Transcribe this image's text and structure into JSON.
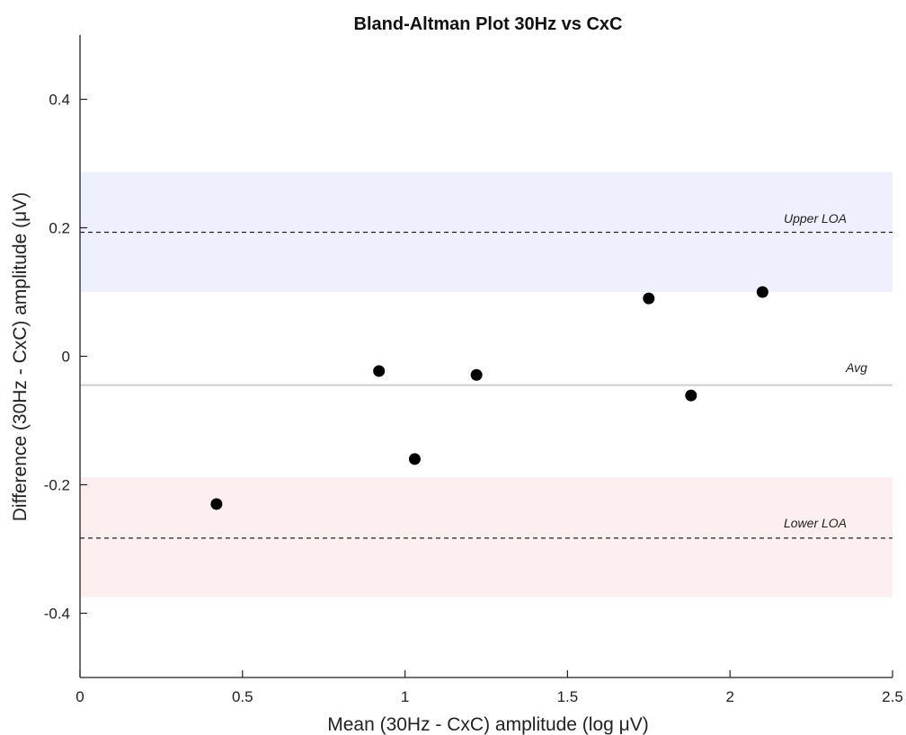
{
  "chart_data": {
    "type": "scatter",
    "title": "Bland-Altman Plot 30Hz vs CxC",
    "xlabel": "Mean (30Hz - CxC) amplitude (log μV)",
    "ylabel": "Difference (30Hz - CxC) amplitude  (μV)",
    "xlim": [
      0,
      2.5
    ],
    "ylim": [
      -0.5,
      0.5
    ],
    "xticks": [
      0,
      0.5,
      1,
      1.5,
      2,
      2.5
    ],
    "xtick_labels": [
      "0",
      "0.5",
      "1",
      "1.5",
      "2",
      "2.5"
    ],
    "yticks": [
      -0.4,
      -0.2,
      0,
      0.2,
      0.4
    ],
    "ytick_labels": [
      "-0.4",
      "-0.2",
      "0",
      "0.2",
      "0.4"
    ],
    "grid": false,
    "points": [
      {
        "x": 0.42,
        "y": -0.23
      },
      {
        "x": 0.92,
        "y": -0.023
      },
      {
        "x": 1.03,
        "y": -0.16
      },
      {
        "x": 1.22,
        "y": -0.029
      },
      {
        "x": 1.75,
        "y": 0.09
      },
      {
        "x": 1.88,
        "y": -0.061
      },
      {
        "x": 2.1,
        "y": 0.1
      }
    ],
    "mean_line": {
      "y": -0.045,
      "label": "Avg",
      "color": "#cfcfcf"
    },
    "upper_loa": {
      "y": 0.193,
      "label": "Upper LOA",
      "band": [
        0.1,
        0.287
      ],
      "band_color": "#eef0fd"
    },
    "lower_loa": {
      "y": -0.283,
      "label": "Lower LOA",
      "band": [
        -0.375,
        -0.188
      ],
      "band_color": "#fdefef"
    },
    "marker_color": "#000000"
  }
}
